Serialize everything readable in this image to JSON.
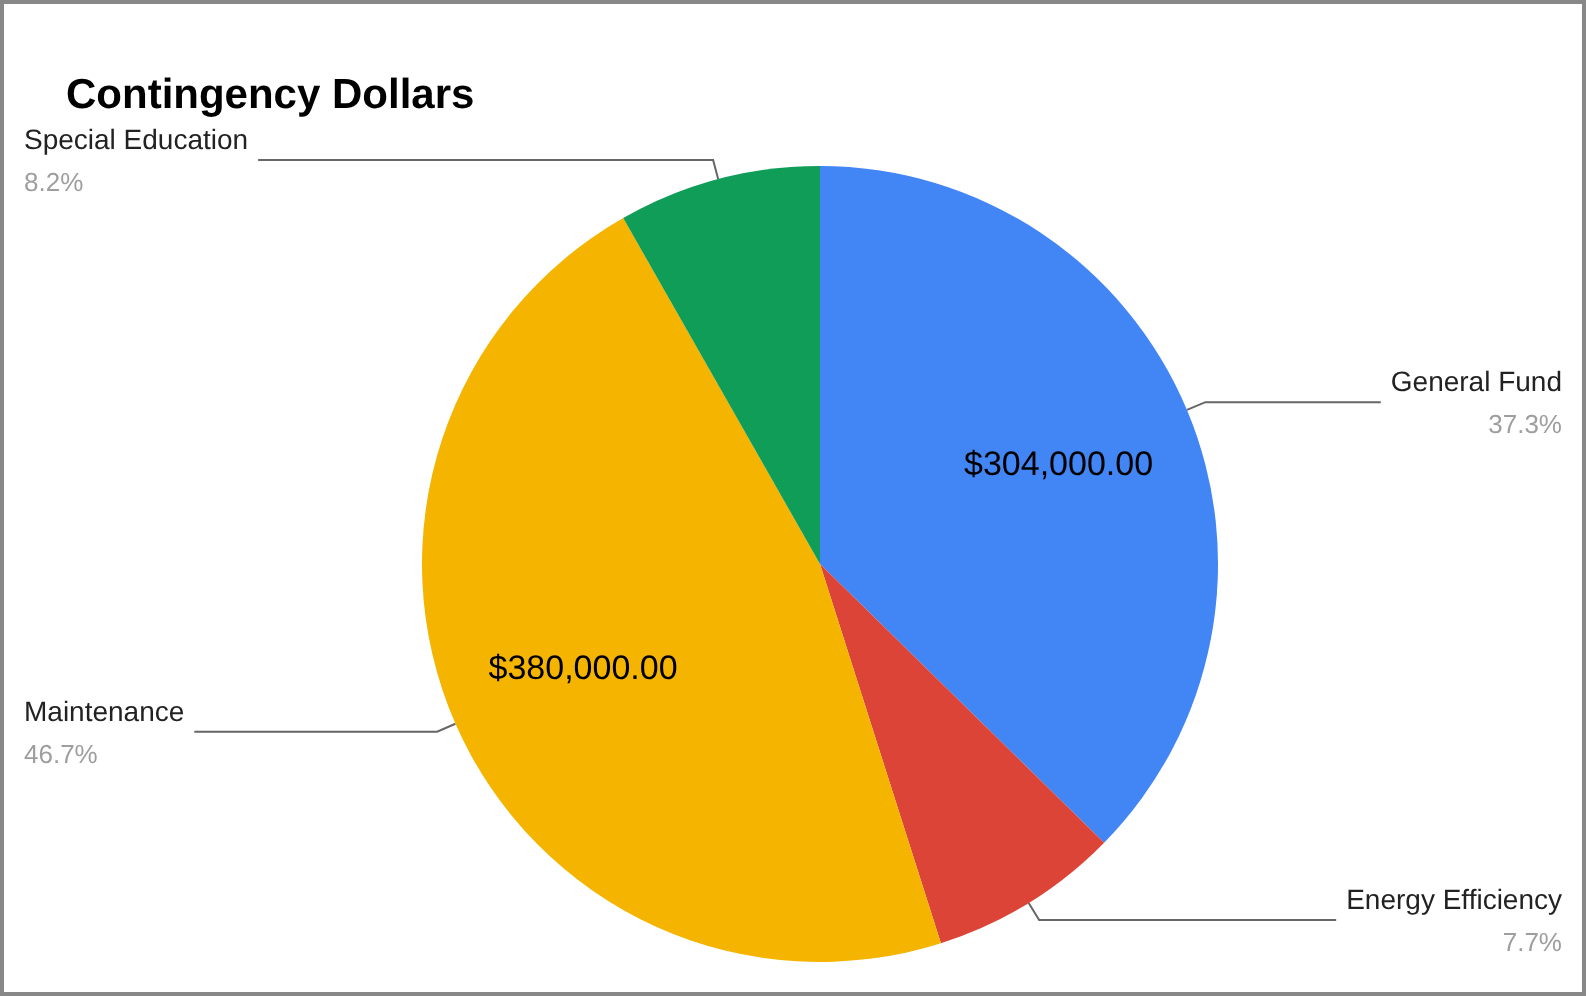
{
  "chart_data": {
    "type": "pie",
    "title": "Contingency Dollars",
    "categories": [
      "General Fund",
      "Energy Efficiency",
      "Maintenance",
      "Special Education"
    ],
    "values": [
      304000,
      63000,
      380000,
      67000
    ],
    "colors": [
      "#4285f4",
      "#db4437",
      "#f4b400",
      "#0f9d58"
    ],
    "value_labels": [
      "$304,000.00",
      null,
      "$380,000.00",
      null
    ],
    "annotations": [
      "37.3%",
      "7.7%",
      "46.7%",
      "8.2%"
    ],
    "legend": false
  }
}
